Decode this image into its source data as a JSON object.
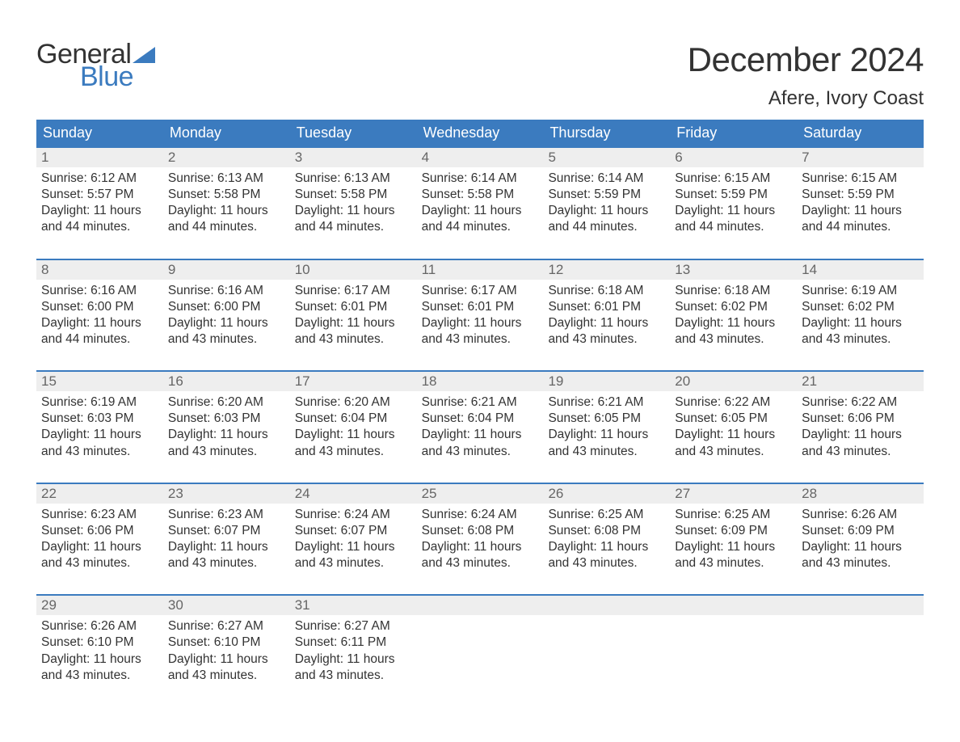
{
  "logo": {
    "text1": "General",
    "text2": "Blue",
    "accent_color": "#3b7bbf"
  },
  "title": "December 2024",
  "location": "Afere, Ivory Coast",
  "header_bg": "#3b7bbf",
  "daynum_bg": "#eeeeee",
  "weekdays": [
    "Sunday",
    "Monday",
    "Tuesday",
    "Wednesday",
    "Thursday",
    "Friday",
    "Saturday"
  ],
  "weeks": [
    [
      {
        "n": "1",
        "sunrise": "Sunrise: 6:12 AM",
        "sunset": "Sunset: 5:57 PM",
        "d1": "Daylight: 11 hours",
        "d2": "and 44 minutes."
      },
      {
        "n": "2",
        "sunrise": "Sunrise: 6:13 AM",
        "sunset": "Sunset: 5:58 PM",
        "d1": "Daylight: 11 hours",
        "d2": "and 44 minutes."
      },
      {
        "n": "3",
        "sunrise": "Sunrise: 6:13 AM",
        "sunset": "Sunset: 5:58 PM",
        "d1": "Daylight: 11 hours",
        "d2": "and 44 minutes."
      },
      {
        "n": "4",
        "sunrise": "Sunrise: 6:14 AM",
        "sunset": "Sunset: 5:58 PM",
        "d1": "Daylight: 11 hours",
        "d2": "and 44 minutes."
      },
      {
        "n": "5",
        "sunrise": "Sunrise: 6:14 AM",
        "sunset": "Sunset: 5:59 PM",
        "d1": "Daylight: 11 hours",
        "d2": "and 44 minutes."
      },
      {
        "n": "6",
        "sunrise": "Sunrise: 6:15 AM",
        "sunset": "Sunset: 5:59 PM",
        "d1": "Daylight: 11 hours",
        "d2": "and 44 minutes."
      },
      {
        "n": "7",
        "sunrise": "Sunrise: 6:15 AM",
        "sunset": "Sunset: 5:59 PM",
        "d1": "Daylight: 11 hours",
        "d2": "and 44 minutes."
      }
    ],
    [
      {
        "n": "8",
        "sunrise": "Sunrise: 6:16 AM",
        "sunset": "Sunset: 6:00 PM",
        "d1": "Daylight: 11 hours",
        "d2": "and 44 minutes."
      },
      {
        "n": "9",
        "sunrise": "Sunrise: 6:16 AM",
        "sunset": "Sunset: 6:00 PM",
        "d1": "Daylight: 11 hours",
        "d2": "and 43 minutes."
      },
      {
        "n": "10",
        "sunrise": "Sunrise: 6:17 AM",
        "sunset": "Sunset: 6:01 PM",
        "d1": "Daylight: 11 hours",
        "d2": "and 43 minutes."
      },
      {
        "n": "11",
        "sunrise": "Sunrise: 6:17 AM",
        "sunset": "Sunset: 6:01 PM",
        "d1": "Daylight: 11 hours",
        "d2": "and 43 minutes."
      },
      {
        "n": "12",
        "sunrise": "Sunrise: 6:18 AM",
        "sunset": "Sunset: 6:01 PM",
        "d1": "Daylight: 11 hours",
        "d2": "and 43 minutes."
      },
      {
        "n": "13",
        "sunrise": "Sunrise: 6:18 AM",
        "sunset": "Sunset: 6:02 PM",
        "d1": "Daylight: 11 hours",
        "d2": "and 43 minutes."
      },
      {
        "n": "14",
        "sunrise": "Sunrise: 6:19 AM",
        "sunset": "Sunset: 6:02 PM",
        "d1": "Daylight: 11 hours",
        "d2": "and 43 minutes."
      }
    ],
    [
      {
        "n": "15",
        "sunrise": "Sunrise: 6:19 AM",
        "sunset": "Sunset: 6:03 PM",
        "d1": "Daylight: 11 hours",
        "d2": "and 43 minutes."
      },
      {
        "n": "16",
        "sunrise": "Sunrise: 6:20 AM",
        "sunset": "Sunset: 6:03 PM",
        "d1": "Daylight: 11 hours",
        "d2": "and 43 minutes."
      },
      {
        "n": "17",
        "sunrise": "Sunrise: 6:20 AM",
        "sunset": "Sunset: 6:04 PM",
        "d1": "Daylight: 11 hours",
        "d2": "and 43 minutes."
      },
      {
        "n": "18",
        "sunrise": "Sunrise: 6:21 AM",
        "sunset": "Sunset: 6:04 PM",
        "d1": "Daylight: 11 hours",
        "d2": "and 43 minutes."
      },
      {
        "n": "19",
        "sunrise": "Sunrise: 6:21 AM",
        "sunset": "Sunset: 6:05 PM",
        "d1": "Daylight: 11 hours",
        "d2": "and 43 minutes."
      },
      {
        "n": "20",
        "sunrise": "Sunrise: 6:22 AM",
        "sunset": "Sunset: 6:05 PM",
        "d1": "Daylight: 11 hours",
        "d2": "and 43 minutes."
      },
      {
        "n": "21",
        "sunrise": "Sunrise: 6:22 AM",
        "sunset": "Sunset: 6:06 PM",
        "d1": "Daylight: 11 hours",
        "d2": "and 43 minutes."
      }
    ],
    [
      {
        "n": "22",
        "sunrise": "Sunrise: 6:23 AM",
        "sunset": "Sunset: 6:06 PM",
        "d1": "Daylight: 11 hours",
        "d2": "and 43 minutes."
      },
      {
        "n": "23",
        "sunrise": "Sunrise: 6:23 AM",
        "sunset": "Sunset: 6:07 PM",
        "d1": "Daylight: 11 hours",
        "d2": "and 43 minutes."
      },
      {
        "n": "24",
        "sunrise": "Sunrise: 6:24 AM",
        "sunset": "Sunset: 6:07 PM",
        "d1": "Daylight: 11 hours",
        "d2": "and 43 minutes."
      },
      {
        "n": "25",
        "sunrise": "Sunrise: 6:24 AM",
        "sunset": "Sunset: 6:08 PM",
        "d1": "Daylight: 11 hours",
        "d2": "and 43 minutes."
      },
      {
        "n": "26",
        "sunrise": "Sunrise: 6:25 AM",
        "sunset": "Sunset: 6:08 PM",
        "d1": "Daylight: 11 hours",
        "d2": "and 43 minutes."
      },
      {
        "n": "27",
        "sunrise": "Sunrise: 6:25 AM",
        "sunset": "Sunset: 6:09 PM",
        "d1": "Daylight: 11 hours",
        "d2": "and 43 minutes."
      },
      {
        "n": "28",
        "sunrise": "Sunrise: 6:26 AM",
        "sunset": "Sunset: 6:09 PM",
        "d1": "Daylight: 11 hours",
        "d2": "and 43 minutes."
      }
    ],
    [
      {
        "n": "29",
        "sunrise": "Sunrise: 6:26 AM",
        "sunset": "Sunset: 6:10 PM",
        "d1": "Daylight: 11 hours",
        "d2": "and 43 minutes."
      },
      {
        "n": "30",
        "sunrise": "Sunrise: 6:27 AM",
        "sunset": "Sunset: 6:10 PM",
        "d1": "Daylight: 11 hours",
        "d2": "and 43 minutes."
      },
      {
        "n": "31",
        "sunrise": "Sunrise: 6:27 AM",
        "sunset": "Sunset: 6:11 PM",
        "d1": "Daylight: 11 hours",
        "d2": "and 43 minutes."
      },
      {
        "empty": true
      },
      {
        "empty": true
      },
      {
        "empty": true
      },
      {
        "empty": true
      }
    ]
  ]
}
